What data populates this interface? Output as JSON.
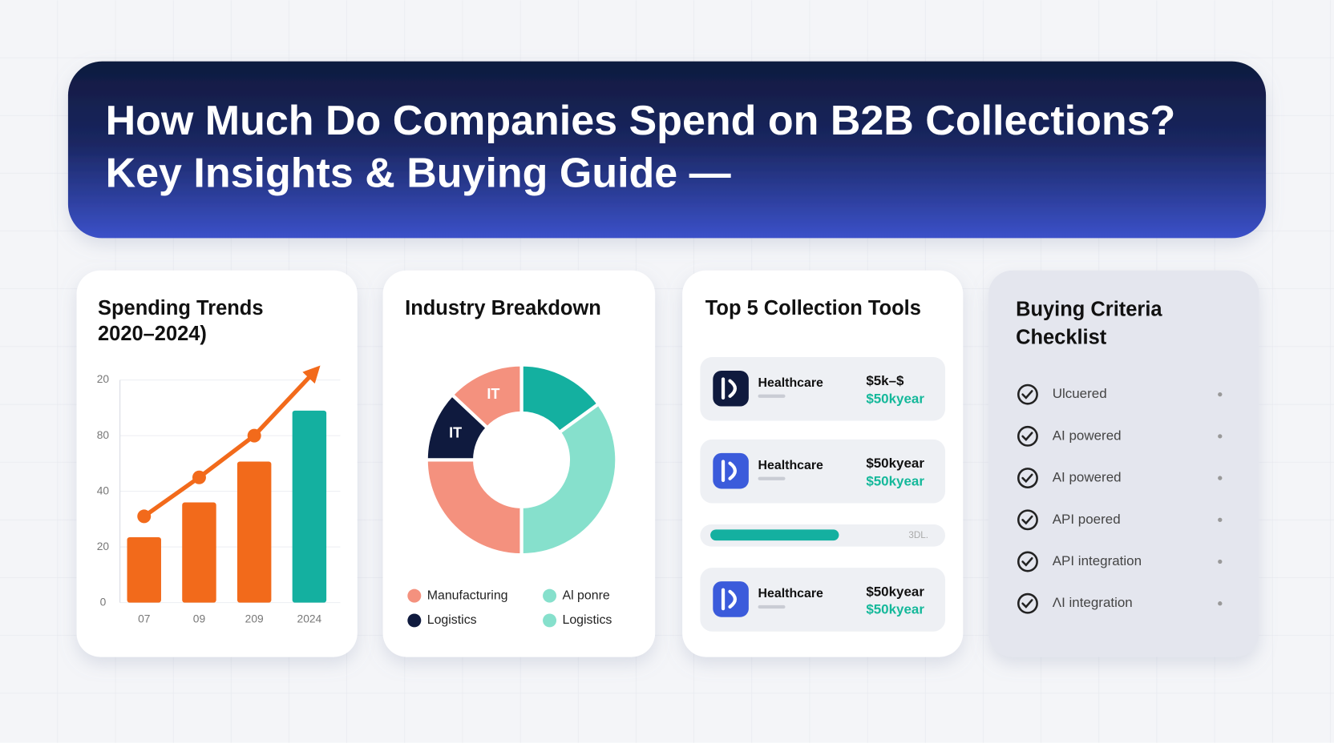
{
  "header": {
    "title_lines": [
      "How Much Do Companies Spend on B2B Collections?",
      "Key Insights & Buying Guide —"
    ]
  },
  "chart_data": [
    {
      "type": "bar",
      "title": [
        "Spending Trends",
        "2020–2024)"
      ],
      "categories": [
        "07",
        "09",
        "209",
        "2024"
      ],
      "values": [
        23.5,
        36,
        50.7,
        69
      ],
      "colors": [
        "#f26a1b",
        "#f26a1b",
        "#f26a1b",
        "#14b0a0"
      ],
      "line_values": [
        31,
        45,
        60,
        83
      ],
      "line_color": "#f26a1b",
      "ylim": [
        0,
        80
      ],
      "y_labels": [
        "20",
        "80",
        "40",
        "20",
        "0"
      ],
      "grid": true
    },
    {
      "type": "pie",
      "title": "Industry Breakdown",
      "values": [
        15,
        35,
        25,
        12,
        13
      ],
      "colors": [
        "#14b0a0",
        "#86e0cc",
        "#f4917e",
        "#0f1a3e",
        "#f4917e"
      ],
      "labels": [
        null,
        null,
        null,
        "IT",
        "IT"
      ],
      "legend": [
        {
          "name": "Manufacturing",
          "color": "#f4917e"
        },
        {
          "name": "Al ponre",
          "color": "#86e0cc"
        },
        {
          "name": "Logistics",
          "color": "#0f1a3e"
        },
        {
          "name": "Logistics",
          "color": "#86e0cc"
        }
      ]
    }
  ],
  "tools": {
    "title": "Top 5 Collection Tools",
    "rows": [
      {
        "name": "Healthcare",
        "price": "$5k–$",
        "price_sub": "$50kyear",
        "icon": "#0f1a3e"
      },
      {
        "name": "Healthcare",
        "price": "$50kyear",
        "price_sub": "$50kyear",
        "icon": "#3b5bdb"
      },
      {
        "name": "Healthcare",
        "price": "$50kyear",
        "price_sub": "$50kyear",
        "icon": "#3b5bdb"
      }
    ],
    "progress": {
      "value": 57,
      "lim": [
        0,
        100
      ],
      "text": "3DL."
    }
  },
  "checklist": {
    "title": [
      "Buying Criteria",
      "Checklist"
    ],
    "items": [
      "Ulcuered",
      "AI powered",
      "AI powered",
      "API poered",
      "API integration",
      "ΛI integration"
    ]
  }
}
